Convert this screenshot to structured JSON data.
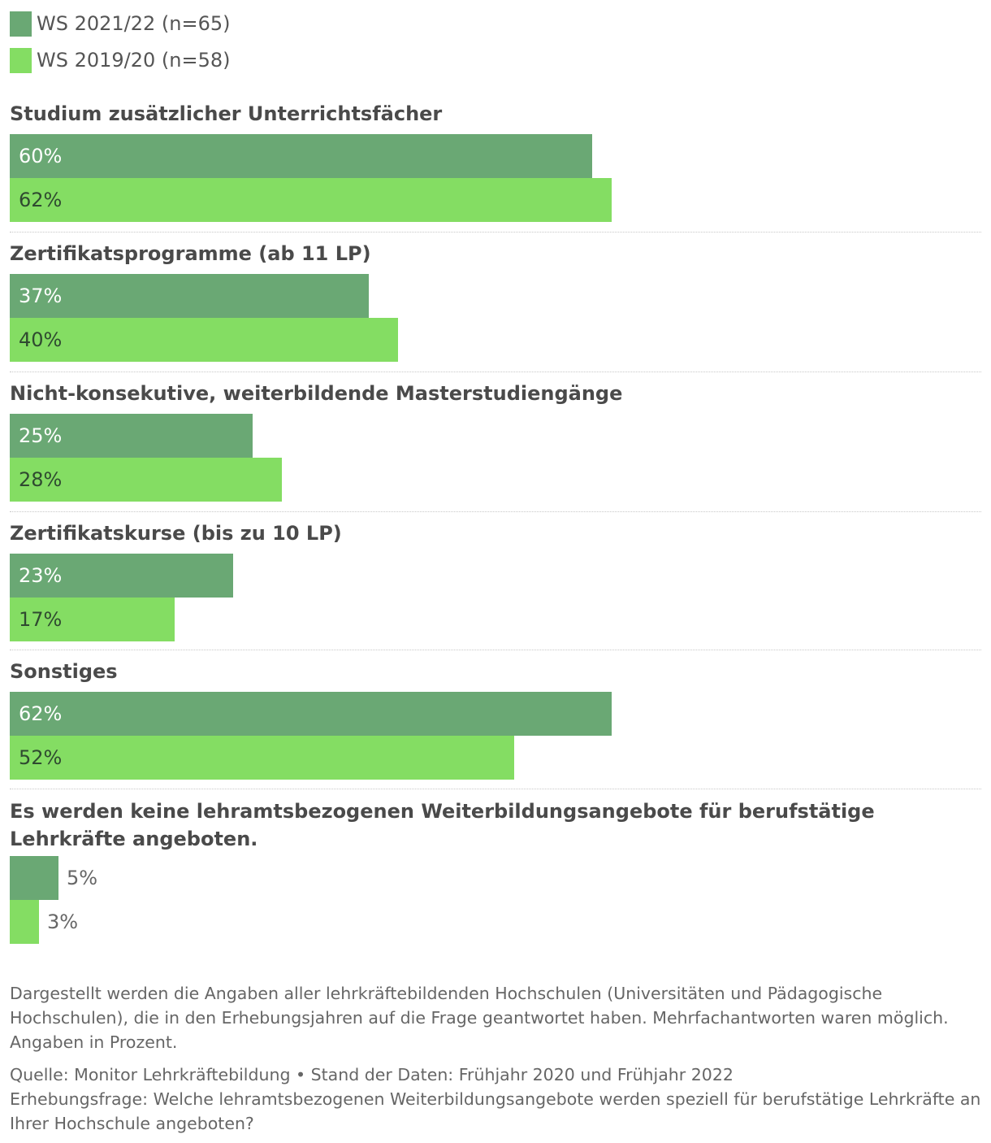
{
  "colors": {
    "series_2021": "#6aa874",
    "series_2019": "#84dd63",
    "label_inside_2021": "#ffffff",
    "label_inside_2019": "#2f4a30",
    "label_outside": "#666666"
  },
  "legend": [
    {
      "label": "WS 2021/22 (n=65)"
    },
    {
      "label": "WS 2019/20 (n=58)"
    }
  ],
  "chart_data": {
    "type": "bar",
    "orientation": "horizontal",
    "unit": "%",
    "categories": [
      "Studium zusätzlicher Unterrichtsfächer",
      "Zertifikatsprogramme (ab 11 LP)",
      "Nicht-konsekutive, weiterbildende Masterstudiengänge",
      "Zertifikatskurse (bis zu 10 LP)",
      "Sonstiges",
      "Es werden keine lehramtsbezogenen Weiterbildungsangebote für berufstätige Lehrkräfte angeboten."
    ],
    "series": [
      {
        "name": "WS 2021/22 (n=65)",
        "values": [
          60,
          37,
          25,
          23,
          62,
          5
        ],
        "labels": [
          "60%",
          "37%",
          "25%",
          "23%",
          "62%",
          "5%"
        ]
      },
      {
        "name": "WS 2019/20 (n=58)",
        "values": [
          62,
          40,
          28,
          17,
          52,
          3
        ],
        "labels": [
          "62%",
          "40%",
          "28%",
          "17%",
          "52%",
          "3%"
        ]
      }
    ],
    "xlim": [
      0,
      100
    ],
    "grid": false,
    "legend_position": "top-left"
  },
  "notes": {
    "description": "Dargestellt werden die Angaben aller lehrkräftebildenden Hochschulen (Universitäten und Pädagogische Hochschulen), die in den Erhebungsjahren auf die Frage geantwortet haben. Mehrfachantworten waren möglich. Angaben in Prozent.",
    "source": "Quelle: Monitor Lehrkräftebildung • Stand der Daten: Frühjahr 2020 und Frühjahr 2022",
    "question": "Erhebungsfrage: Welche lehramtsbezogenen Weiterbildungsangebote werden speziell für berufstätige Lehrkräfte an Ihrer Hochschule angeboten?"
  }
}
